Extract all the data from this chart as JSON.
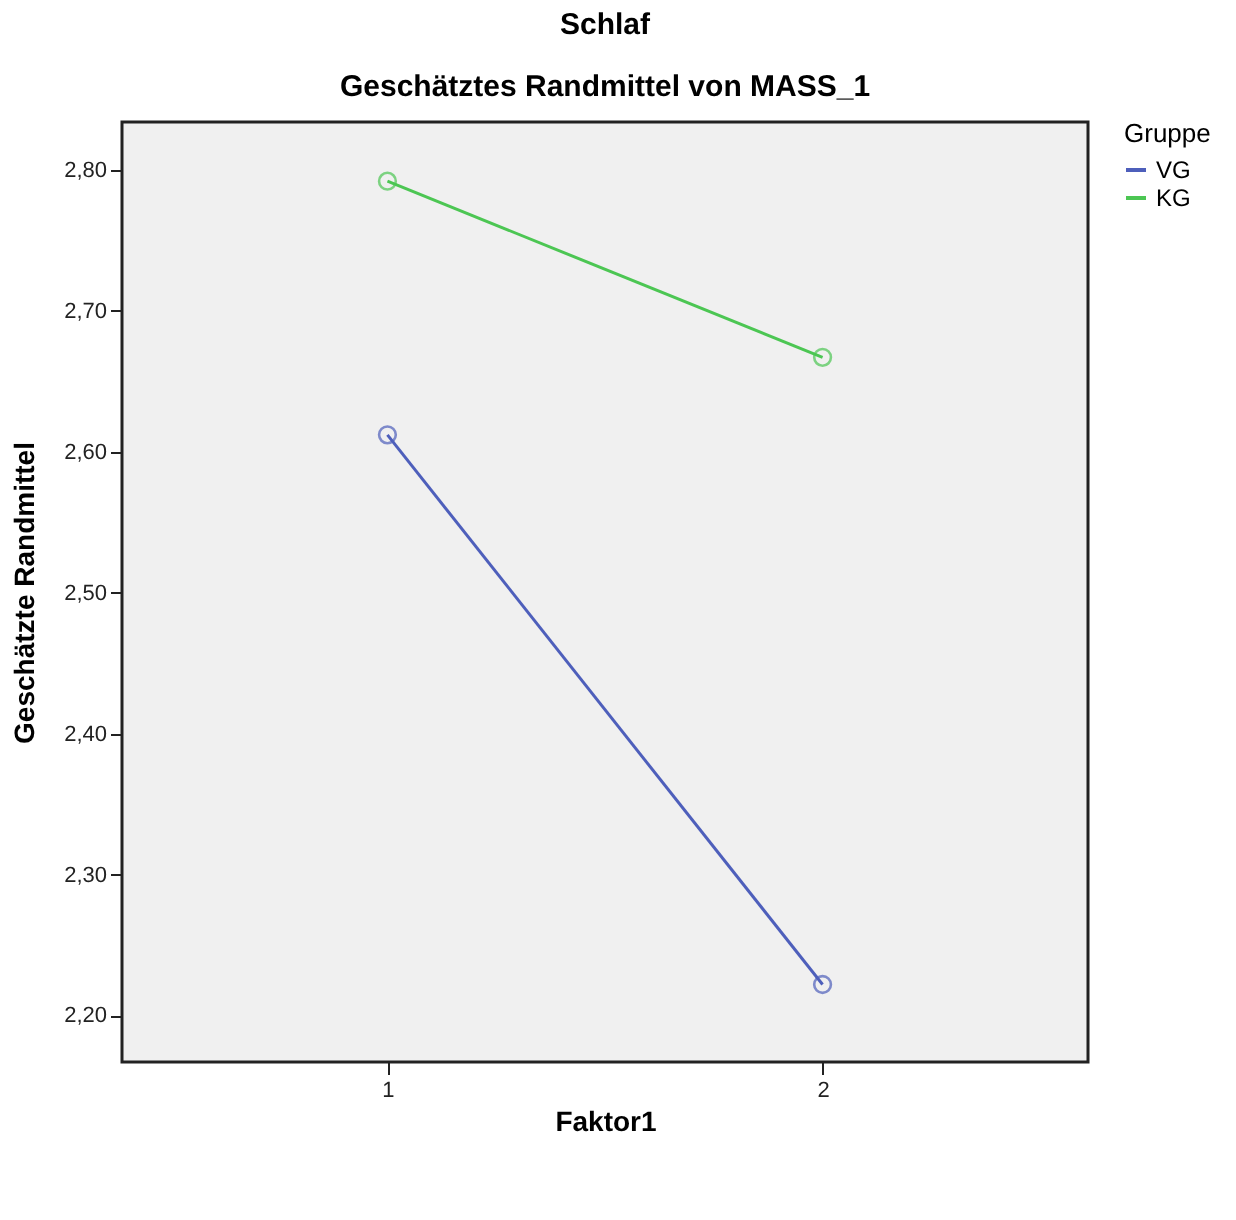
{
  "chart_data": {
    "type": "line",
    "title": "Schlaf",
    "subtitle": "Geschätztes Randmittel von MASS_1",
    "xlabel": "Faktor1",
    "ylabel": "Geschätzte Randmittel",
    "legend_title": "Gruppe",
    "categories": [
      "1",
      "2"
    ],
    "series": [
      {
        "name": "VG",
        "color": "#4e5fbb",
        "values": [
          2.612,
          2.222
        ]
      },
      {
        "name": "KG",
        "color": "#4cc653",
        "values": [
          2.792,
          2.667
        ]
      }
    ],
    "ylim": [
      2.167,
      2.834
    ],
    "yticks": [
      {
        "value": 2.2,
        "label": "2,20"
      },
      {
        "value": 2.3,
        "label": "2,30"
      },
      {
        "value": 2.4,
        "label": "2,40"
      },
      {
        "value": 2.5,
        "label": "2,50"
      },
      {
        "value": 2.6,
        "label": "2,60"
      },
      {
        "value": 2.7,
        "label": "2,70"
      },
      {
        "value": 2.8,
        "label": "2,80"
      }
    ],
    "marker": "circle",
    "line_style": "solid",
    "legend": "top right",
    "grid": false
  }
}
